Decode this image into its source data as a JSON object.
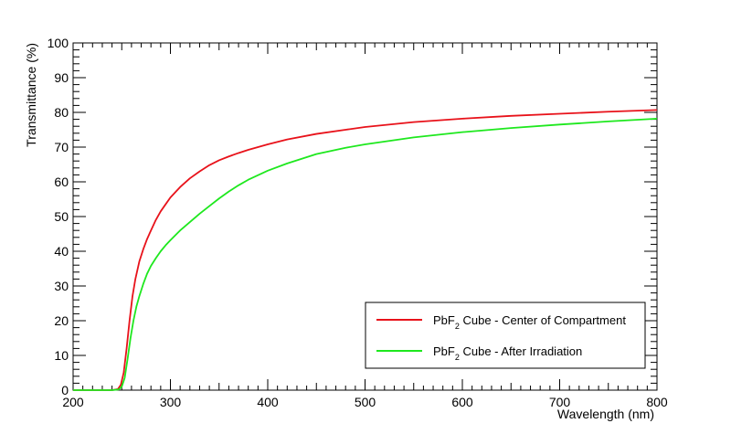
{
  "chart_data": {
    "type": "line",
    "title": "",
    "xlabel": "Wavelength (nm)",
    "ylabel": "Transmittance (%)",
    "xlim": [
      200,
      800
    ],
    "ylim": [
      0,
      100
    ],
    "x_ticks": [
      200,
      300,
      400,
      500,
      600,
      700,
      800
    ],
    "y_ticks": [
      0,
      10,
      20,
      30,
      40,
      50,
      60,
      70,
      80,
      90,
      100
    ],
    "grid": false,
    "legend_position": "bottom-right",
    "series": [
      {
        "name": "PbF2 Cube - Center of Compartment",
        "legend_base": "PbF",
        "legend_sub": "2",
        "legend_rest": " Cube - Center of Compartment",
        "color": "#e8121a",
        "x": [
          200,
          240,
          246,
          249,
          252,
          255,
          258,
          261,
          264,
          268,
          272,
          276,
          280,
          285,
          290,
          295,
          300,
          310,
          320,
          330,
          340,
          350,
          360,
          370,
          380,
          400,
          420,
          450,
          480,
          500,
          550,
          600,
          650,
          700,
          750,
          800
        ],
        "y": [
          0,
          0,
          0.3,
          1.5,
          5,
          12,
          20,
          27,
          32,
          37,
          40.5,
          43.5,
          46,
          49,
          51.5,
          53.5,
          55.5,
          58.5,
          61,
          63,
          64.8,
          66.2,
          67.3,
          68.3,
          69.2,
          70.8,
          72.2,
          73.8,
          75,
          75.8,
          77.2,
          78.2,
          79,
          79.6,
          80.2,
          80.7
        ]
      },
      {
        "name": "PbF2 Cube - After Irradiation",
        "legend_base": "PbF",
        "legend_sub": "2",
        "legend_rest": " Cube - After Irradiation",
        "color": "#1ee81e",
        "x": [
          200,
          240,
          247,
          250,
          253,
          256,
          259,
          262,
          265,
          268,
          272,
          276,
          280,
          285,
          290,
          295,
          300,
          310,
          320,
          330,
          340,
          350,
          360,
          370,
          380,
          400,
          420,
          450,
          480,
          500,
          550,
          600,
          650,
          700,
          750,
          800
        ],
        "y": [
          0,
          0,
          0.2,
          1,
          3.5,
          9,
          15,
          20,
          24,
          27,
          30.5,
          33.5,
          35.8,
          38,
          40,
          41.7,
          43.2,
          46,
          48.4,
          50.8,
          53,
          55.2,
          57.2,
          59,
          60.6,
          63.2,
          65.3,
          68,
          69.8,
          70.8,
          72.8,
          74.3,
          75.5,
          76.5,
          77.4,
          78.2
        ]
      }
    ]
  }
}
